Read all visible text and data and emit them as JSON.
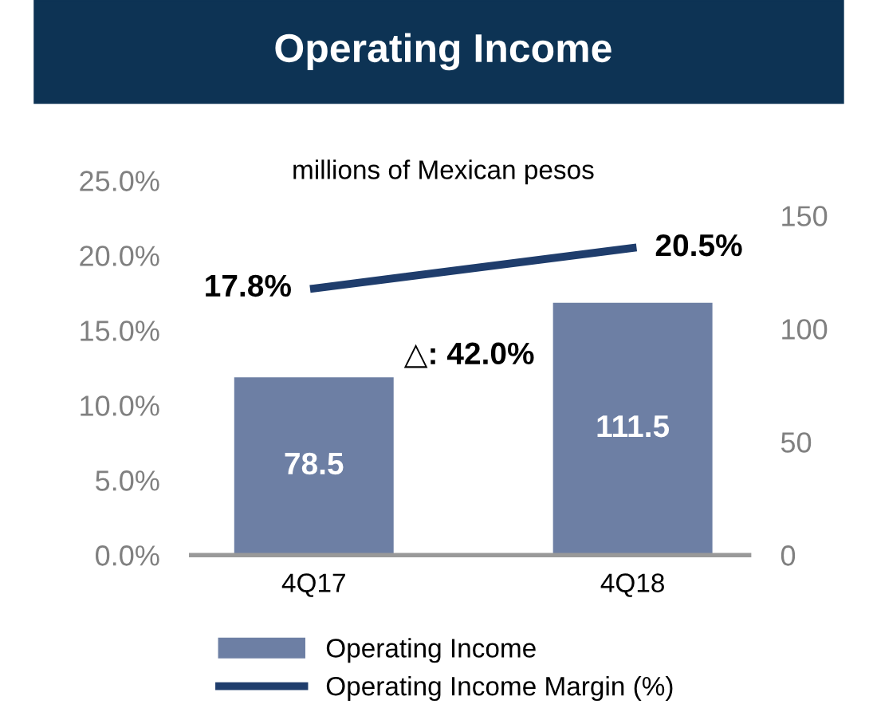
{
  "chart_data": {
    "type": "bar",
    "title": "Operating Income",
    "categories": [
      "4Q17",
      "4Q18"
    ],
    "series": [
      {
        "name": "Operating Income",
        "axis": "y2",
        "color": "#6d7fa4",
        "values": [
          78.5,
          111.5
        ],
        "value_labels": [
          "78.5",
          "111.5"
        ]
      },
      {
        "name": "Operating Income Margin (%)",
        "type": "line",
        "axis": "y",
        "color": "#1f3d6c",
        "values": [
          17.8,
          20.5
        ],
        "value_labels": [
          "17.8%",
          "20.5%"
        ]
      }
    ],
    "ylim": [
      0,
      25
    ],
    "yticks": [
      {
        "value": 0,
        "label": "0.0%"
      },
      {
        "value": 5,
        "label": "5.0%"
      },
      {
        "value": 10,
        "label": "10.0%"
      },
      {
        "value": 15,
        "label": "15.0%"
      },
      {
        "value": 20,
        "label": "20.0%"
      },
      {
        "value": 25,
        "label": "25.0%"
      }
    ],
    "y2lim": [
      0,
      150
    ],
    "y2ticks": [
      0,
      50,
      100,
      150
    ],
    "annotations": [
      "millions of Mexican pesos",
      "△: 42.0%"
    ],
    "legend": "bottom",
    "grid": false,
    "marker": "none",
    "line_style": "solid"
  }
}
